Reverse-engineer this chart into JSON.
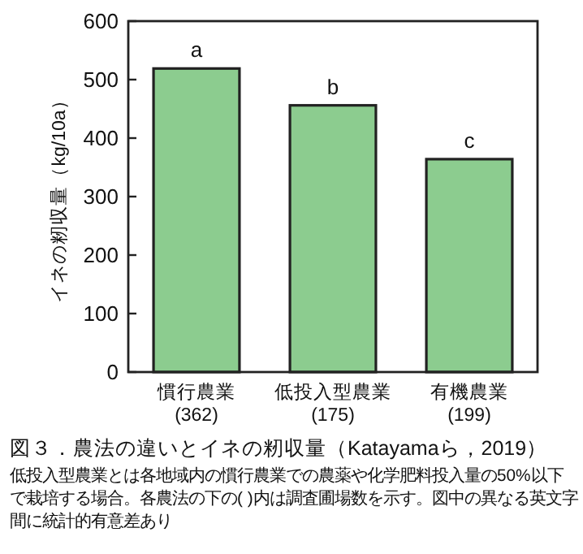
{
  "chart_data": {
    "type": "bar",
    "title": "図３．農法の違いとイネの籾収量（Katayamaら，2019）",
    "ylabel": "イネの籾収量（kg/10a）",
    "categories": [
      "慣行農業\n(362)",
      "低投入型農業\n(175)",
      "有機農業\n(199)"
    ],
    "values": [
      519,
      456,
      364
    ],
    "color": "#8ccc8f",
    "ylim": [
      0,
      600
    ],
    "yticks": [
      0,
      100,
      200,
      300,
      400,
      500,
      600
    ],
    "grid": false,
    "annotations": [
      {
        "text": "a",
        "x": "慣行農業\n(362)",
        "y": 519
      },
      {
        "text": "b",
        "x": "低投入型農業\n(175)",
        "y": 456
      },
      {
        "text": "c",
        "x": "有機農業\n(199)",
        "y": 364
      },
      "低投入型農業とは各地域内の慣行農業での農薬や化学肥料投入量の50%以下で栽培する場合。各農法の下の( )内は調査圃場数を示す。図中の異なる英文字間に統計的有意差あり"
    ]
  }
}
